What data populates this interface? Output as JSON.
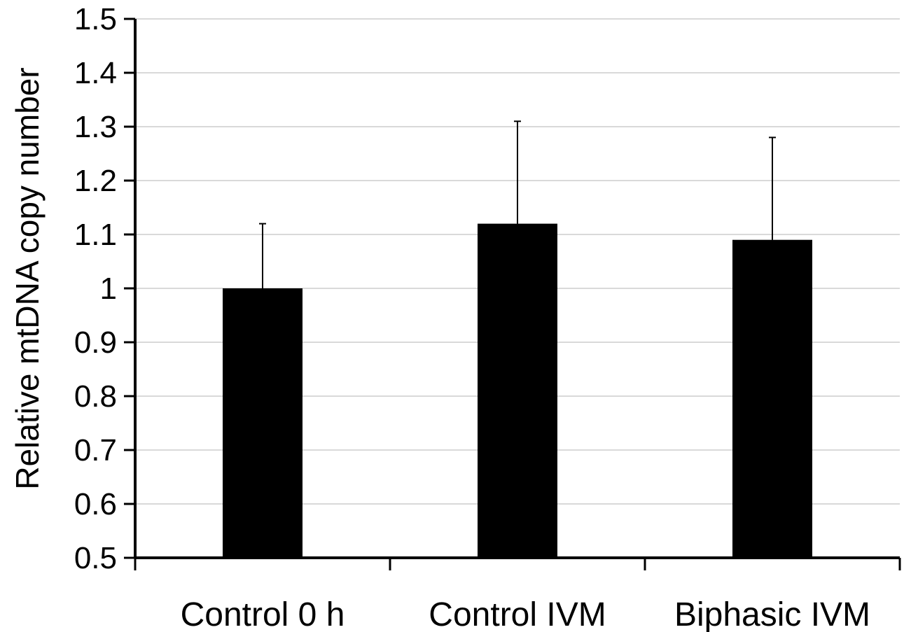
{
  "chart_data": {
    "type": "bar",
    "categories": [
      "Control 0 h",
      "Control IVM",
      "Biphasic IVM"
    ],
    "values": [
      1.0,
      1.12,
      1.09
    ],
    "error_upper": [
      0.12,
      0.19,
      0.19
    ],
    "title": "",
    "xlabel": "",
    "ylabel": "Relative mtDNA copy number",
    "ylim": [
      0.5,
      1.5
    ],
    "yticks": [
      0.5,
      0.6,
      0.7,
      0.8,
      0.9,
      1,
      1.1,
      1.2,
      1.3,
      1.4,
      1.5
    ],
    "ytick_labels": [
      "0.5",
      "0.6",
      "0.7",
      "0.8",
      "0.9",
      "1",
      "1.1",
      "1.2",
      "1.3",
      "1.4",
      "1.5"
    ],
    "grid": true,
    "legend": "none",
    "colors": {
      "bar": "#000000",
      "grid": "#d9d9d9",
      "axis": "#000000"
    }
  }
}
